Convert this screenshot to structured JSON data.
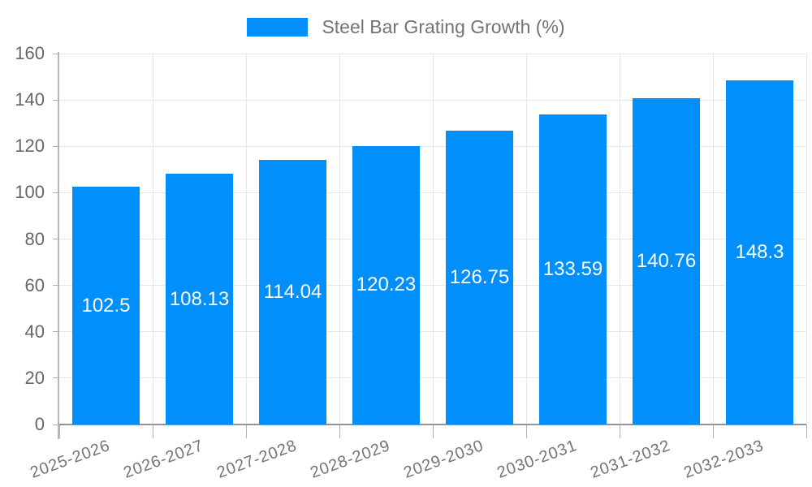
{
  "chart_data": {
    "type": "bar",
    "title": "Steel Bar Grating Growth (%)",
    "categories": [
      "2025-2026",
      "2026-2027",
      "2027-2028",
      "2028-2029",
      "2029-2030",
      "2030-2031",
      "2031-2032",
      "2032-2033"
    ],
    "values": [
      102.5,
      108.13,
      114.04,
      120.23,
      126.75,
      133.59,
      140.76,
      148.3
    ],
    "value_labels": [
      "102.5",
      "108.13",
      "114.04",
      "120.23",
      "126.75",
      "133.59",
      "140.76",
      "148.3"
    ],
    "xlabel": "",
    "ylabel": "",
    "ylim": [
      0,
      160
    ],
    "yticks": [
      0,
      20,
      40,
      60,
      80,
      100,
      120,
      140,
      160
    ],
    "legend_position": "top",
    "grid": true,
    "colors": {
      "bar": "#008FFB",
      "value_label": "#FFFFFF",
      "grid_line": "#E6E6E6",
      "y_axis_line": "#B6B6B6",
      "x_axis_line": "#949494",
      "tick": "#B3B3B3",
      "y_tick_label": "#666666",
      "x_tick_label": "#757575",
      "legend_text": "#737373",
      "background": "#FFFFFF"
    }
  }
}
